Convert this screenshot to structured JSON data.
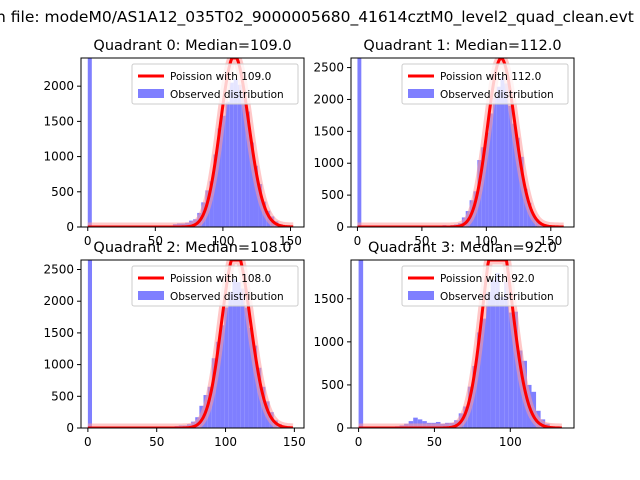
{
  "figure_title": "n file: modeM0/AS1A12_035T02_9000005680_41614cztM0_level2_quad_clean.evt",
  "colors": {
    "hist": "#7f7fff",
    "poisson": "#ff0000",
    "poisson_glow": "#ff9a9a",
    "axis": "#000000"
  },
  "chart_data": [
    {
      "type": "bar",
      "title": "Quadrant 0: Median=109.0",
      "median": 109,
      "xlim": [
        -5,
        160
      ],
      "ylim": [
        0,
        2400
      ],
      "xticks": [
        0,
        50,
        100,
        150
      ],
      "yticks": [
        0,
        500,
        1000,
        1500,
        2000
      ],
      "legend": {
        "placement": "top-right",
        "line_label": "Poission with 109.0",
        "hist_label": "Observed distribution"
      },
      "hist": {
        "bin_width": 3,
        "starts": [
          0,
          57,
          60,
          63,
          66,
          69,
          72,
          75,
          78,
          81,
          84,
          87,
          90,
          93,
          96,
          99,
          102,
          105,
          108,
          111,
          114,
          117,
          120,
          123,
          126,
          129,
          132,
          135,
          138,
          141,
          144,
          147,
          150
        ],
        "values": [
          2400,
          10,
          20,
          40,
          50,
          50,
          60,
          90,
          110,
          200,
          350,
          520,
          650,
          1030,
          1400,
          1580,
          1780,
          2050,
          2100,
          2020,
          1900,
          1640,
          1200,
          870,
          610,
          360,
          230,
          150,
          80,
          40,
          20,
          10,
          5
        ]
      }
    },
    {
      "type": "bar",
      "title": "Quadrant 1: Median=112.0",
      "median": 112,
      "xlim": [
        -5,
        168
      ],
      "ylim": [
        0,
        2650
      ],
      "xticks": [
        0,
        50,
        100,
        150
      ],
      "yticks": [
        0,
        500,
        1000,
        1500,
        2000,
        2500
      ],
      "legend": {
        "placement": "top-right",
        "line_label": "Poission with 112.0",
        "hist_label": "Observed distribution"
      },
      "hist": {
        "bin_width": 3,
        "starts": [
          0,
          66,
          69,
          72,
          75,
          78,
          81,
          84,
          87,
          90,
          93,
          96,
          99,
          102,
          105,
          108,
          111,
          114,
          117,
          120,
          123,
          126,
          129,
          132,
          135,
          138,
          141,
          144,
          147,
          150
        ],
        "values": [
          2650,
          30,
          20,
          30,
          40,
          60,
          150,
          250,
          420,
          560,
          1050,
          1250,
          1480,
          1780,
          2030,
          2200,
          2350,
          2250,
          1900,
          1620,
          1400,
          1100,
          600,
          380,
          200,
          120,
          60,
          30,
          15,
          5
        ]
      }
    },
    {
      "type": "bar",
      "title": "Quadrant 2: Median=108.0",
      "median": 108,
      "xlim": [
        -5,
        157
      ],
      "ylim": [
        0,
        2650
      ],
      "xticks": [
        0,
        50,
        100,
        150
      ],
      "yticks": [
        0,
        500,
        1000,
        1500,
        2000,
        2500
      ],
      "legend": {
        "placement": "top-right",
        "line_label": "Poission with 108.0",
        "hist_label": "Observed distribution"
      },
      "hist": {
        "bin_width": 3,
        "starts": [
          0,
          60,
          63,
          66,
          69,
          72,
          75,
          78,
          81,
          84,
          87,
          90,
          93,
          96,
          99,
          102,
          105,
          108,
          111,
          114,
          117,
          120,
          123,
          126,
          129,
          132,
          135,
          138,
          141,
          144
        ],
        "values": [
          2650,
          20,
          30,
          40,
          40,
          60,
          100,
          170,
          350,
          520,
          650,
          1100,
          1360,
          1620,
          1900,
          2150,
          2350,
          2300,
          2200,
          1900,
          1580,
          1300,
          950,
          650,
          420,
          250,
          120,
          60,
          30,
          10
        ]
      }
    },
    {
      "type": "bar",
      "title": "Quadrant 3: Median=92.0",
      "median": 92,
      "xlim": [
        -5,
        142
      ],
      "ylim": [
        0,
        1950
      ],
      "xticks": [
        0,
        50,
        100
      ],
      "yticks": [
        0,
        500,
        1000,
        1500
      ],
      "legend": {
        "placement": "top-right",
        "line_label": "Poission with 92.0",
        "hist_label": "Observed distribution"
      },
      "hist": {
        "bin_width": 3,
        "starts": [
          0,
          24,
          27,
          30,
          33,
          36,
          39,
          42,
          45,
          48,
          51,
          54,
          57,
          60,
          63,
          66,
          69,
          72,
          75,
          78,
          81,
          84,
          87,
          90,
          93,
          96,
          99,
          102,
          105,
          108,
          111,
          114,
          117,
          120,
          123
        ],
        "values": [
          1950,
          20,
          30,
          50,
          80,
          120,
          100,
          80,
          60,
          60,
          70,
          50,
          60,
          60,
          90,
          170,
          250,
          480,
          720,
          1110,
          1270,
          1580,
          1720,
          1800,
          1520,
          1700,
          1340,
          1350,
          900,
          780,
          500,
          420,
          200,
          100,
          50
        ]
      }
    }
  ]
}
